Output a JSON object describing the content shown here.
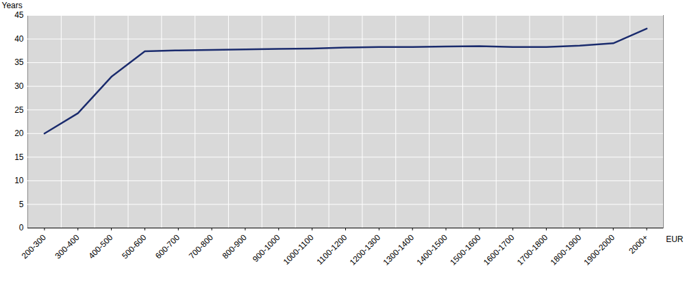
{
  "chart_data": {
    "type": "line",
    "categories": [
      "200-300",
      "300-400",
      "400-500",
      "500-600",
      "600-700",
      "700-800",
      "800-900",
      "900-1000",
      "1000-1100",
      "1100-1200",
      "1200-1300",
      "1300-1400",
      "1400-1500",
      "1500-1600",
      "1600-1700",
      "1700-1800",
      "1800-1900",
      "1900-2000",
      "2000+"
    ],
    "values": [
      20.0,
      24.3,
      32.0,
      37.4,
      37.6,
      37.7,
      37.8,
      37.9,
      38.0,
      38.2,
      38.3,
      38.3,
      38.4,
      38.5,
      38.3,
      38.3,
      38.6,
      39.1,
      42.2
    ],
    "color": "#1a2b6d",
    "x_label": "EUR",
    "y_label": "Years",
    "ylim": [
      0,
      45
    ],
    "yticks": [
      0,
      5,
      10,
      15,
      20,
      25,
      30,
      35,
      40,
      45
    ],
    "grid": true
  }
}
